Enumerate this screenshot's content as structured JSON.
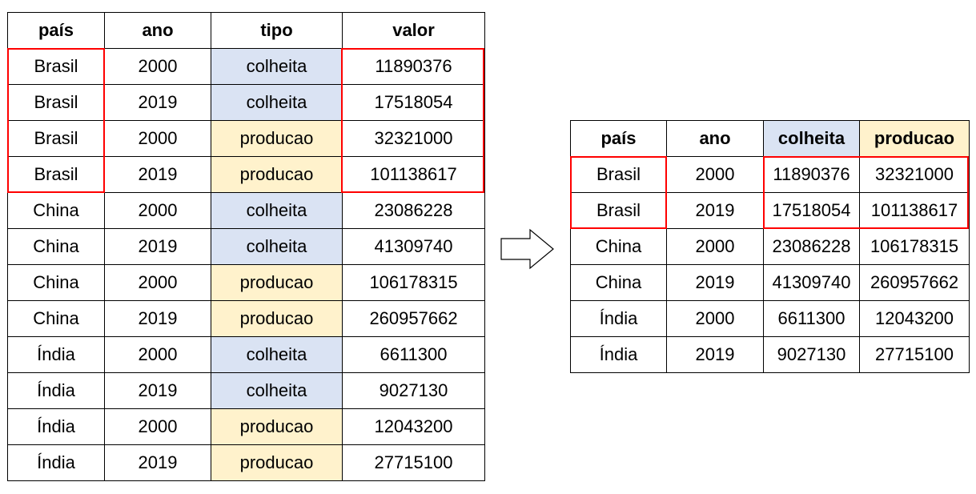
{
  "long_table": {
    "headers": [
      "país",
      "ano",
      "tipo",
      "valor"
    ],
    "rows": [
      [
        "Brasil",
        "2000",
        "colheita",
        "11890376"
      ],
      [
        "Brasil",
        "2019",
        "colheita",
        "17518054"
      ],
      [
        "Brasil",
        "2000",
        "producao",
        "32321000"
      ],
      [
        "Brasil",
        "2019",
        "producao",
        "101138617"
      ],
      [
        "China",
        "2000",
        "colheita",
        "23086228"
      ],
      [
        "China",
        "2019",
        "colheita",
        "41309740"
      ],
      [
        "China",
        "2000",
        "producao",
        "106178315"
      ],
      [
        "China",
        "2019",
        "producao",
        "260957662"
      ],
      [
        "Índia",
        "2000",
        "colheita",
        "6611300"
      ],
      [
        "Índia",
        "2019",
        "colheita",
        "9027130"
      ],
      [
        "Índia",
        "2000",
        "producao",
        "12043200"
      ],
      [
        "Índia",
        "2019",
        "producao",
        "27715100"
      ]
    ]
  },
  "wide_table": {
    "headers": [
      "país",
      "ano",
      "colheita",
      "producao"
    ],
    "rows": [
      [
        "Brasil",
        "2000",
        "11890376",
        "32321000"
      ],
      [
        "Brasil",
        "2019",
        "17518054",
        "101138617"
      ],
      [
        "China",
        "2000",
        "23086228",
        "106178315"
      ],
      [
        "China",
        "2019",
        "41309740",
        "260957662"
      ],
      [
        "Índia",
        "2000",
        "6611300",
        "12043200"
      ],
      [
        "Índia",
        "2019",
        "9027130",
        "27715100"
      ]
    ]
  },
  "colors": {
    "colheita_fill": "#dae3f3",
    "producao_fill": "#fff2cc",
    "highlight_border": "#ff0000"
  },
  "icons": {
    "transform_arrow": "right-arrow-icon"
  }
}
